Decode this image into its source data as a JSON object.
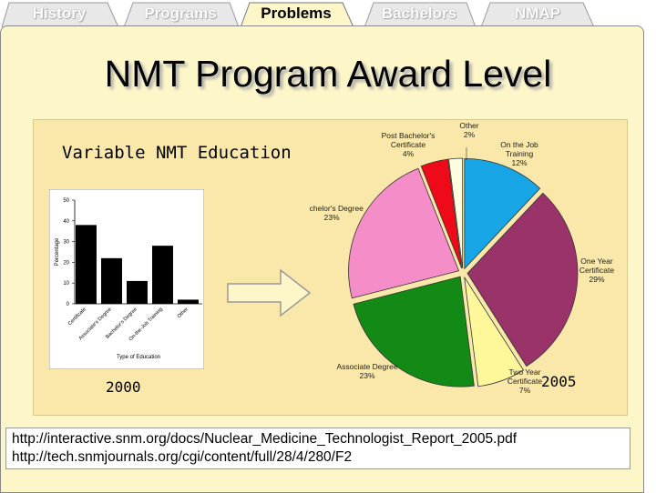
{
  "tabs": [
    "History",
    "Programs",
    "Problems",
    "Bachelors",
    "NMAP"
  ],
  "active_tab": "Problems",
  "title": "NMT Program Award Level",
  "subtitle": "Variable NMT Education",
  "year_left": "2000",
  "year_right": "2005",
  "links": [
    "http://interactive.snm.org/docs/Nuclear_Medicine_Technologist_Report_2005.pdf",
    "http://tech.snmjournals.org/cgi/content/full/28/4/280/F2"
  ],
  "chart_data": [
    {
      "type": "bar",
      "title": "",
      "xlabel": "Type of Education",
      "ylabel": "Percentage",
      "ylim": [
        0,
        50
      ],
      "yticks": [
        0,
        10,
        20,
        30,
        40,
        50
      ],
      "categories": [
        "Certificate",
        "Associate's Degree",
        "Bachelor's Degree",
        "On-the-Job Training",
        "Other"
      ],
      "values": [
        38,
        22,
        11,
        28,
        2
      ],
      "bar_color": "#000000",
      "grid": false
    },
    {
      "type": "pie",
      "slices": [
        {
          "label": "On the Job Training",
          "value": 12,
          "display": "12%",
          "color": "#17a5e6"
        },
        {
          "label": "One Year Certificate",
          "value": 29,
          "display": "29%",
          "color": "#99336a"
        },
        {
          "label": "Two Year Certificate",
          "value": 7,
          "display": "7%",
          "color": "#fff89b"
        },
        {
          "label": "Associate Degree",
          "value": 23,
          "display": "23%",
          "color": "#138a16"
        },
        {
          "label": "Bachelor's Degree",
          "value": 23,
          "display": "23%",
          "color": "#f58dc8"
        },
        {
          "label": "Post Bachelor's Certificate",
          "value": 4,
          "display": "4%",
          "color": "#ee0a18"
        },
        {
          "label": "Other",
          "value": 2,
          "display": "2%",
          "color": "#fefde0"
        }
      ]
    }
  ]
}
